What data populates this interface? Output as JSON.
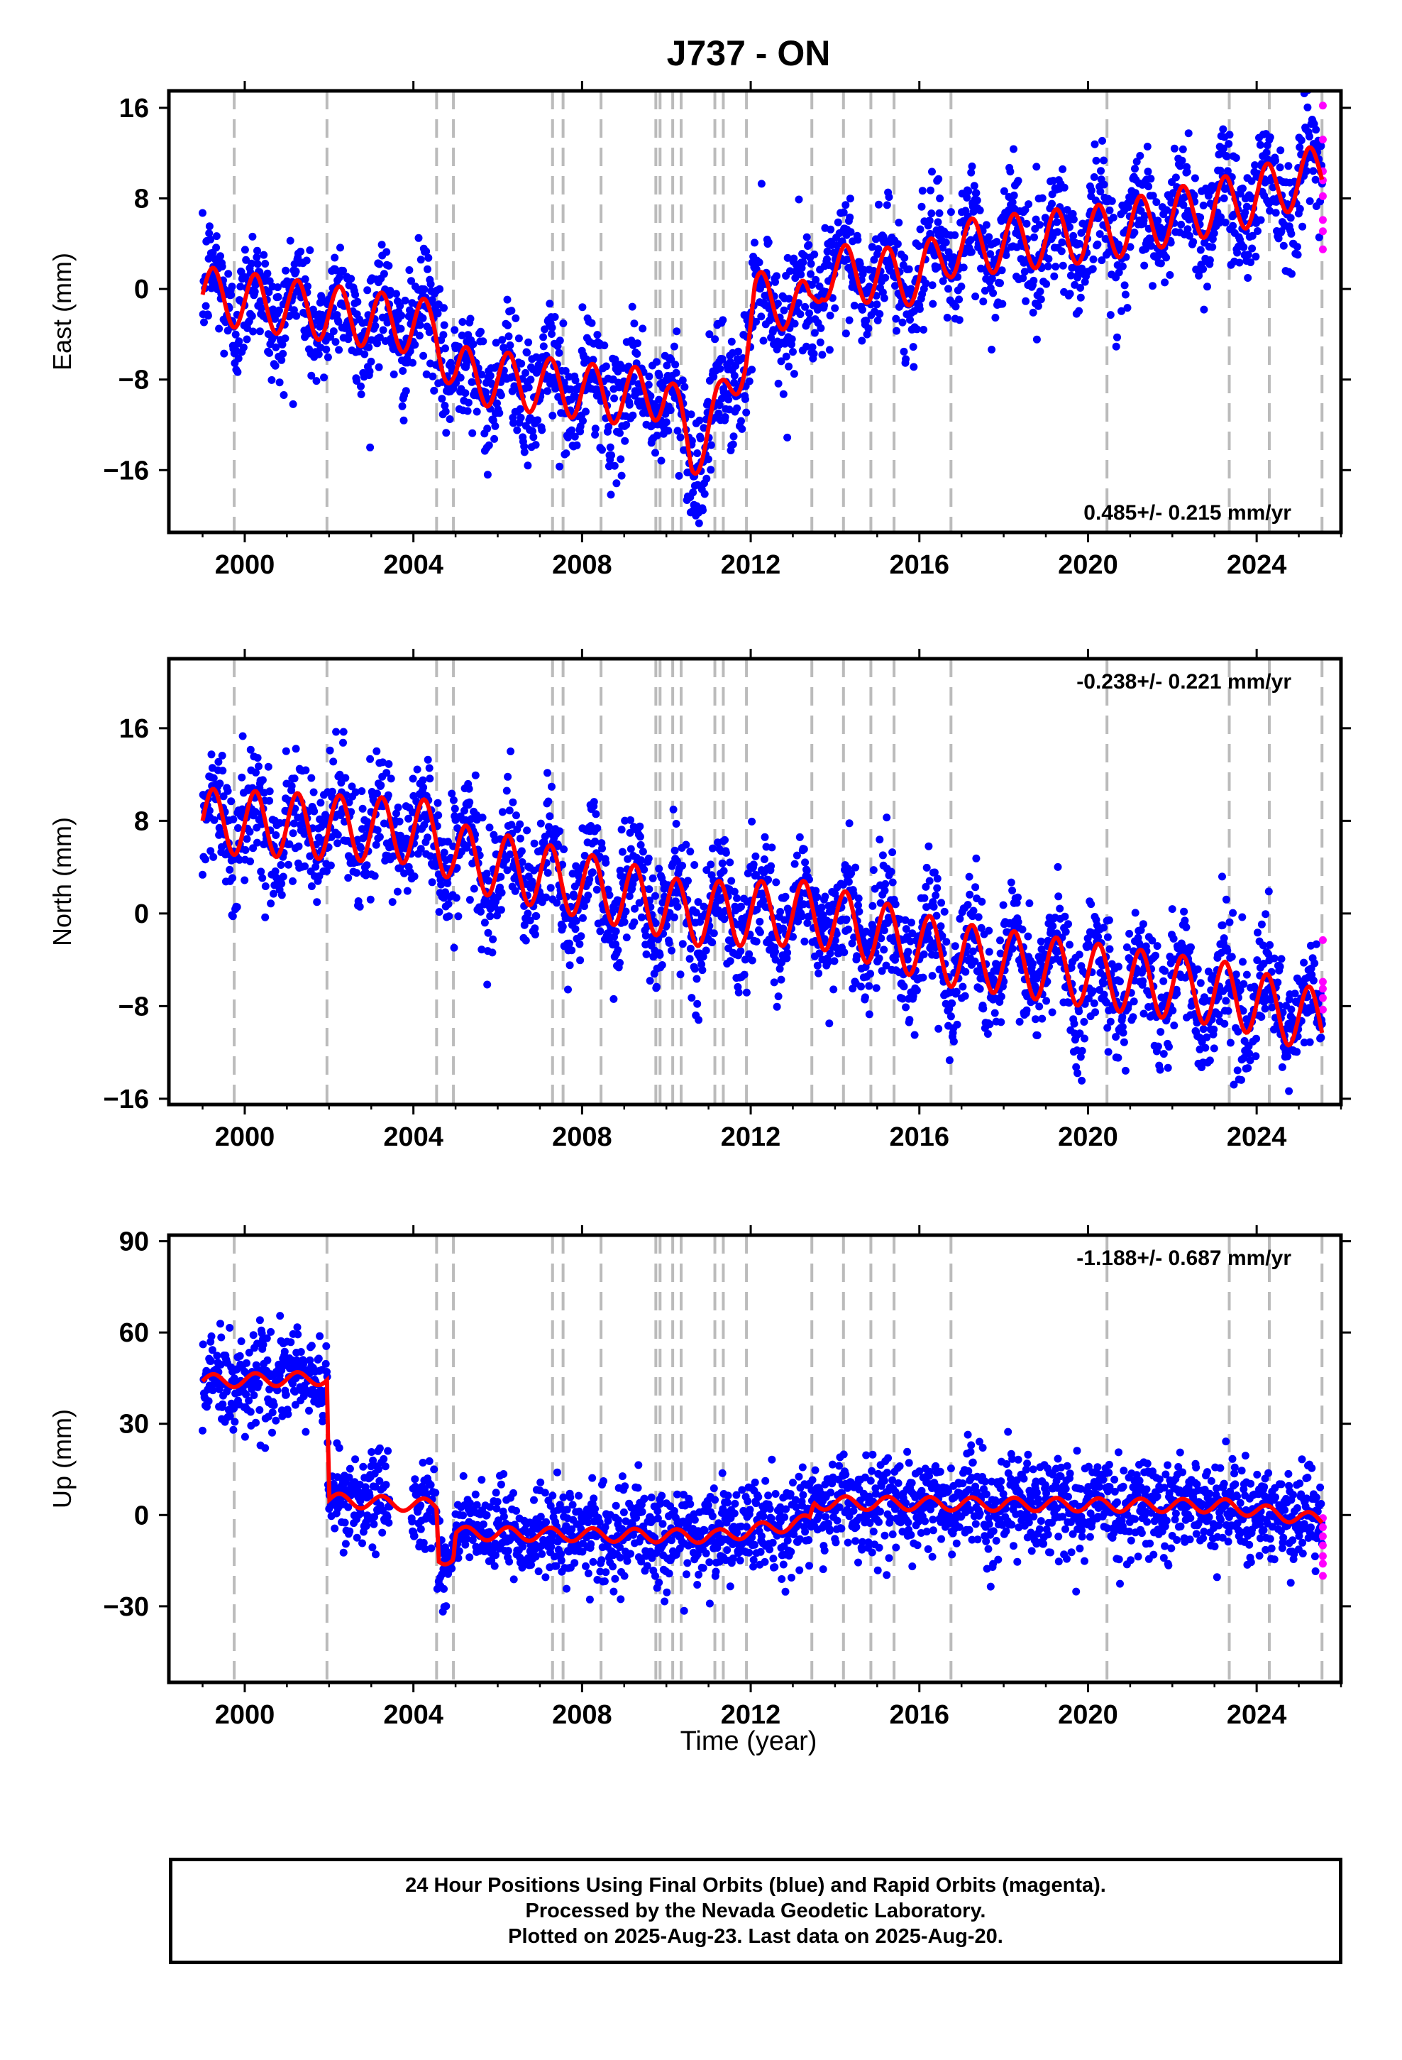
{
  "title": "J737 - ON",
  "xlabel": "Time (year)",
  "colors": {
    "final_orbits": "#0000ff",
    "rapid_orbits": "#ff00ff",
    "model_fit": "#ff0000",
    "event_lines": "#bbbbbb"
  },
  "caption": {
    "line1": "24 Hour Positions Using Final Orbits (blue) and Rapid Orbits (magenta).",
    "line2": "Processed by the Nevada Geodetic Laboratory.",
    "line3": "Plotted on 2025-Aug-23. Last data on 2025-Aug-20."
  },
  "event_years": [
    1999.75,
    2001.95,
    2004.55,
    2004.95,
    2007.3,
    2007.55,
    2008.45,
    2009.75,
    2009.85,
    2010.15,
    2010.35,
    2011.15,
    2011.35,
    2011.9,
    2013.45,
    2014.2,
    2014.85,
    2015.4,
    2016.75,
    2020.45,
    2023.35,
    2024.3,
    2025.55
  ],
  "chart_data": [
    {
      "type": "scatter",
      "name": "east",
      "ylabel": "East (mm)",
      "rate_text": "0.485+/- 0.215 mm/yr",
      "rate_position": "bottom-right",
      "xlim": [
        1998.2,
        2026.0
      ],
      "ylim": [
        -21.5,
        17.5
      ],
      "xticks": [
        2000,
        2004,
        2008,
        2012,
        2016,
        2020,
        2024
      ],
      "xtick_labels": [
        "2000",
        "2004",
        "2008",
        "2012",
        "2016",
        "2020",
        "2024"
      ],
      "yticks": [
        16,
        8,
        0,
        -8,
        -16
      ],
      "ytick_labels": [
        "16",
        "8",
        "0",
        "−8",
        "−16"
      ],
      "trend": [
        [
          1999.0,
          -0.5
        ],
        [
          2004.5,
          -3.5
        ],
        [
          2005.0,
          -7.5
        ],
        [
          2009.0,
          -9.5
        ],
        [
          2010.0,
          -9.0
        ],
        [
          2010.6,
          -14.5
        ],
        [
          2011.3,
          -10.5
        ],
        [
          2011.9,
          -5.0
        ],
        [
          2012.1,
          -1.0
        ],
        [
          2012.7,
          -1.0
        ],
        [
          2013.4,
          -2.0
        ],
        [
          2013.7,
          1.5
        ],
        [
          2016.0,
          1.0
        ],
        [
          2016.7,
          3.5
        ],
        [
          2020.4,
          5.0
        ],
        [
          2023.3,
          7.5
        ],
        [
          2023.5,
          7.5
        ],
        [
          2025.6,
          10.5
        ]
      ],
      "amplitude": 2.5,
      "scatter_sd": 2.6,
      "rapid_points": [
        [
          2025.57,
          16.2
        ],
        [
          2025.57,
          13.2
        ],
        [
          2025.57,
          10.4
        ],
        [
          2025.57,
          9.6
        ],
        [
          2025.57,
          8.2
        ],
        [
          2025.57,
          6.1
        ],
        [
          2025.57,
          5.1
        ],
        [
          2025.57,
          3.5
        ]
      ]
    },
    {
      "type": "scatter",
      "name": "north",
      "ylabel": "North (mm)",
      "rate_text": "-0.238+/- 0.221 mm/yr",
      "rate_position": "top-right",
      "xlim": [
        1998.2,
        2026.0
      ],
      "ylim": [
        -16.5,
        22.0
      ],
      "xticks": [
        2000,
        2004,
        2008,
        2012,
        2016,
        2020,
        2024
      ],
      "xtick_labels": [
        "2000",
        "2004",
        "2008",
        "2012",
        "2016",
        "2020",
        "2024"
      ],
      "yticks": [
        16,
        8,
        0,
        -8,
        -16
      ],
      "ytick_labels": [
        "16",
        "8",
        "0",
        "−8",
        "−16"
      ],
      "trend": [
        [
          1999.0,
          8.0
        ],
        [
          2004.5,
          7.0
        ],
        [
          2005.0,
          5.0
        ],
        [
          2009.7,
          1.0
        ],
        [
          2010.4,
          0.0
        ],
        [
          2013.4,
          0.0
        ],
        [
          2016.7,
          -3.5
        ],
        [
          2020.4,
          -5.5
        ],
        [
          2023.3,
          -7.0
        ],
        [
          2025.6,
          -9.5
        ]
      ],
      "amplitude": 2.8,
      "scatter_sd": 2.6,
      "rapid_points": [
        [
          2025.57,
          -2.3
        ],
        [
          2025.57,
          -5.9
        ],
        [
          2025.57,
          -6.5
        ],
        [
          2025.57,
          -7.3
        ],
        [
          2025.57,
          -8.3
        ]
      ]
    },
    {
      "type": "scatter",
      "name": "up",
      "ylabel": "Up (mm)",
      "rate_text": "-1.188+/- 0.687 mm/yr",
      "rate_position": "top-right",
      "xlim": [
        1998.2,
        2026.0
      ],
      "ylim": [
        -55,
        92
      ],
      "xticks": [
        2000,
        2004,
        2008,
        2012,
        2016,
        2020,
        2024
      ],
      "xtick_labels": [
        "2000",
        "2004",
        "2008",
        "2012",
        "2016",
        "2020",
        "2024"
      ],
      "yticks": [
        90,
        60,
        30,
        0,
        -30
      ],
      "ytick_labels": [
        "90",
        "60",
        "30",
        "0",
        "−30"
      ],
      "gap": [
        2003.45,
        2003.95
      ],
      "trend": [
        [
          1999.0,
          44.0
        ],
        [
          2001.95,
          45.0
        ],
        [
          2002.0,
          5.0
        ],
        [
          2004.55,
          3.0
        ],
        [
          2004.6,
          -14.0
        ],
        [
          2004.95,
          -14.0
        ],
        [
          2005.0,
          -6.0
        ],
        [
          2011.2,
          -7.0
        ],
        [
          2013.4,
          -2.0
        ],
        [
          2013.5,
          4.0
        ],
        [
          2023.3,
          3.0
        ],
        [
          2025.6,
          -2.0
        ]
      ],
      "amplitude": 2.2,
      "scatter_sd": 7.5,
      "rapid_points": [
        [
          2025.57,
          -1.0
        ],
        [
          2025.57,
          -4.0
        ],
        [
          2025.57,
          -7.0
        ],
        [
          2025.57,
          -10.0
        ],
        [
          2025.57,
          -13.5
        ],
        [
          2025.57,
          -16.0
        ],
        [
          2025.57,
          -20.0
        ]
      ]
    }
  ]
}
